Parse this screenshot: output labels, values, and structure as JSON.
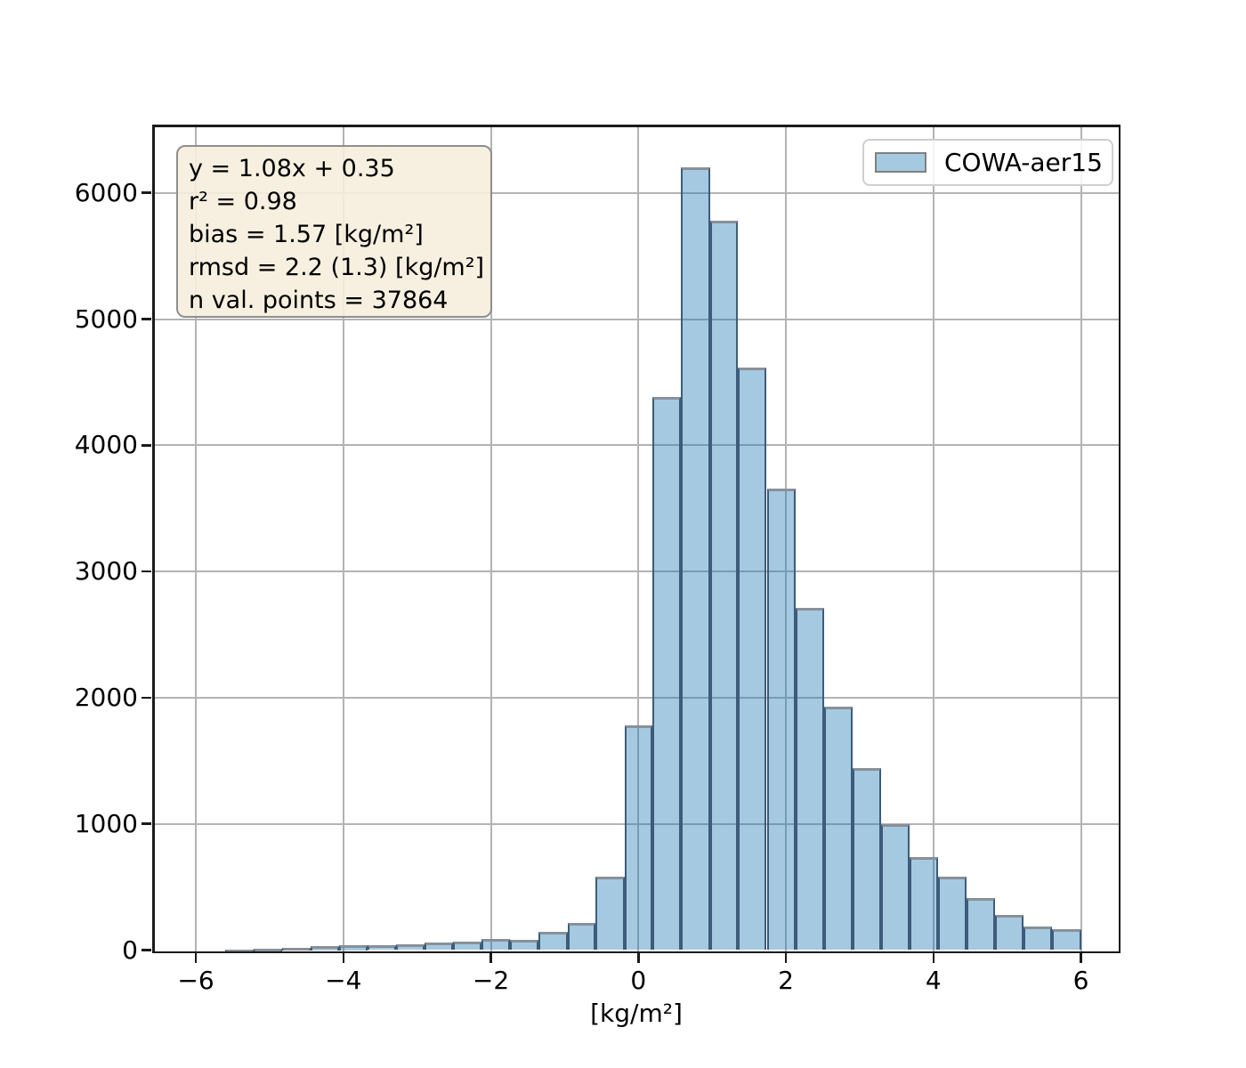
{
  "figure": {
    "background": "#ffffff"
  },
  "axes": {
    "xlabel": "[kg/m²]",
    "ylabel": "",
    "xtick_values": [
      -6,
      -4,
      -2,
      0,
      2,
      4,
      6
    ],
    "xtick_labels": [
      "−6",
      "−4",
      "−2",
      "0",
      "2",
      "4",
      "6"
    ],
    "ytick_values": [
      0,
      1000,
      2000,
      3000,
      4000,
      5000,
      6000
    ],
    "ytick_labels": [
      "0",
      "1000",
      "2000",
      "3000",
      "4000",
      "5000",
      "6000"
    ],
    "grid": true
  },
  "stats_box": {
    "lines": [
      "y = 1.08x + 0.35",
      "r² = 0.98",
      "bias = 1.57 [kg/m²]",
      "rmsd = 2.2 (1.3) [kg/m²]",
      "n val. points = 37864"
    ]
  },
  "legend": {
    "label": "COWA-aer15",
    "position": "upper-right"
  },
  "colors": {
    "bar_fill_base": "#1f77b4",
    "bar_fill_alpha": 0.4,
    "bar_edge_side": "#3d5c7a",
    "bar_edge_top": "#8a9097",
    "gridline": "#b3b3b3",
    "spine": "#1a1a1a",
    "stats_box_bg": "#f6eedd",
    "stats_box_border": "#8f8f8f",
    "legend_border": "#cfcfcf",
    "legend_swatch_fill": "#a5c9e1",
    "legend_swatch_border": "#808080",
    "text": "#000000"
  },
  "chart_data": {
    "type": "bar",
    "subtype": "histogram",
    "title": "",
    "xlabel": "[kg/m²]",
    "ylabel": "",
    "xlim": [
      -6.6,
      6.55
    ],
    "ylim": [
      0,
      6540
    ],
    "grid": true,
    "legend_position": "upper right",
    "annotations": [
      "y = 1.08x + 0.35",
      "r² = 0.98",
      "bias = 1.57 [kg/m²]",
      "rmsd = 2.2 (1.3) [kg/m²]",
      "n val. points = 37864"
    ],
    "series": [
      {
        "name": "COWA-aer15",
        "bin_edges": [
          -5.6,
          -5.22,
          -4.83,
          -4.44,
          -4.06,
          -3.67,
          -3.28,
          -2.9,
          -2.51,
          -2.13,
          -1.74,
          -1.35,
          -0.96,
          -0.58,
          -0.19,
          0.19,
          0.58,
          0.97,
          1.35,
          1.74,
          2.13,
          2.52,
          2.9,
          3.29,
          3.68,
          4.06,
          4.45,
          4.84,
          5.22,
          5.61,
          6.0
        ],
        "counts": [
          5,
          10,
          20,
          30,
          37,
          41,
          46,
          58,
          69,
          90,
          80,
          145,
          213,
          580,
          1780,
          4380,
          6200,
          5780,
          4615,
          3660,
          2715,
          1930,
          1440,
          995,
          740,
          585,
          413,
          276,
          190,
          166
        ]
      }
    ]
  }
}
